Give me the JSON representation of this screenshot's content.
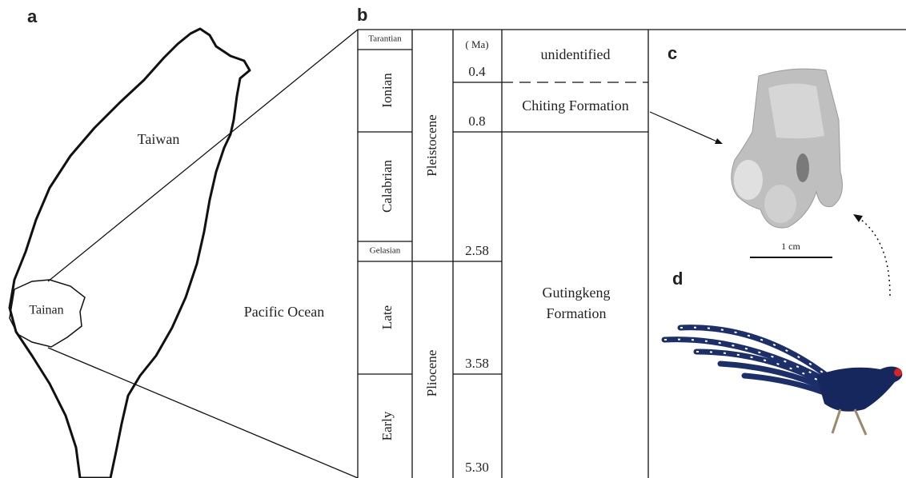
{
  "panels": {
    "a": "a",
    "b": "b",
    "c": "c",
    "d": "d"
  },
  "map": {
    "island": "Taiwan",
    "city": "Tainan",
    "ocean": "Pacific Ocean"
  },
  "column": {
    "unit": "( Ma)",
    "stages": [
      "Tarantian",
      "Ionian",
      "Calabrian",
      "Gelasian",
      "Late",
      "Early"
    ],
    "epochs": [
      "Pleistocene",
      "Pliocene"
    ],
    "ages": [
      "0.4",
      "0.8",
      "2.58",
      "3.58",
      "5.30"
    ],
    "formations": [
      "unidentified",
      "Chiting Formation",
      "Gutingkeng Formation"
    ]
  },
  "scale": "1 cm"
}
